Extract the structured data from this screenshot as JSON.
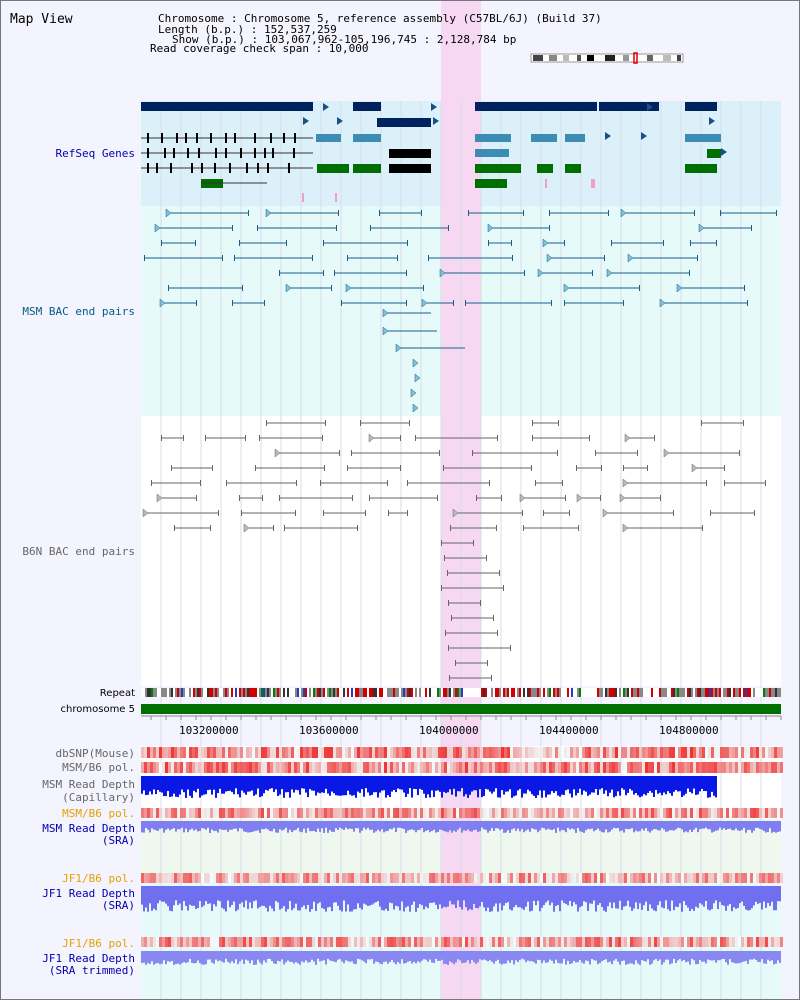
{
  "title": "Map View",
  "info": {
    "chromosome_line": "Chromosome     : Chromosome 5, reference assembly (C57BL/6J) (Build 37)",
    "length_line": "Length (b.p.) : 152,537,259",
    "show_line": "Show (b.p.) : 103,067,962-105,196,745 : 2,128,784 bp",
    "span_line": "Read coverage check span : 10,000"
  },
  "tracks": {
    "refseq": "RefSeq Genes",
    "msm_bac": "MSM BAC end pairs",
    "b6n_bac": "B6N BAC end pairs",
    "repeat": "Repeat",
    "chromosome": "chromosome 5",
    "dbsnp": "dbSNP(Mouse)",
    "msm_b6_pol_1": "MSM/B6 pol.",
    "msm_depth_cap_1": "MSM Read Depth",
    "msm_depth_cap_2": "(Capillary)",
    "msm_b6_pol_2": "MSM/B6 pol.",
    "msm_depth_sra_1": "MSM Read Depth",
    "msm_depth_sra_2": "(SRA)",
    "jf1_b6_pol_1": "JF1/B6 pol.",
    "jf1_depth_sra_1": "JF1 Read Depth",
    "jf1_depth_sra_2": "(SRA)",
    "jf1_b6_pol_2": "JF1/B6 pol.",
    "jf1_depth_trim_1": "JF1 Read Depth",
    "jf1_depth_trim_2": "(SRA trimmed)"
  },
  "axis": {
    "ticks": [
      "103200000",
      "103600000",
      "104000000",
      "104400000",
      "104800000"
    ]
  },
  "colors": {
    "page_bg": "#f4f4fe",
    "refseq_bg": "#dcf0fa",
    "msm_bg": "#e6fafa",
    "highlight": "#f7d8f3",
    "gene_dark": "#00235f",
    "gene_mid": "#3c8cb4",
    "gene_green": "#006e00",
    "chrom_green": "#007000",
    "label_blue": "#0000aa",
    "label_teal": "#005d86",
    "label_gray": "#666666",
    "label_orange": "#e6a000"
  }
}
